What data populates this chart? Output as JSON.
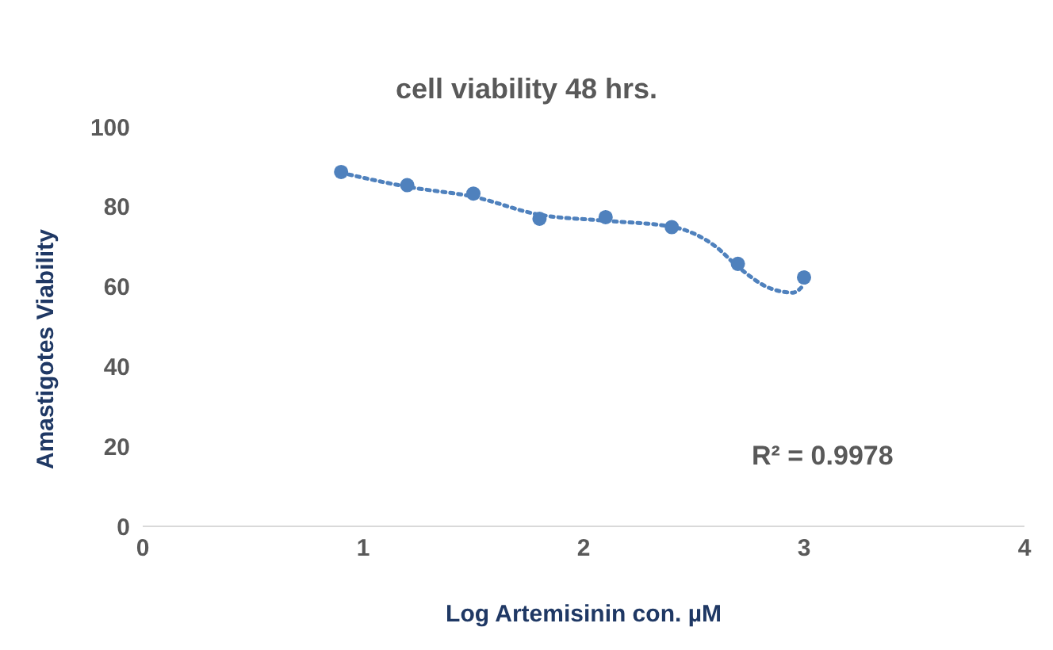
{
  "chart_data": {
    "type": "scatter",
    "title": "cell viability 48 hrs.",
    "xlabel": "Log Artemisinin con. µM",
    "ylabel": "Amastigotes Viability",
    "xlim": [
      0,
      4
    ],
    "xticks": [
      0,
      1,
      2,
      3,
      4
    ],
    "ylim": [
      0,
      100
    ],
    "yticks": [
      0,
      20,
      40,
      60,
      80,
      100
    ],
    "grid": false,
    "legend": false,
    "marker": "circle",
    "annotations": [
      "R² = 0.9978"
    ],
    "series": [
      {
        "color": "#4f81bd",
        "x": [
          0.9,
          1.2,
          1.5,
          1.8,
          2.1,
          2.4,
          2.7,
          3.0
        ],
        "values": [
          88.7,
          85.4,
          83.3,
          77,
          77.4,
          74.9,
          65.7,
          62.3
        ]
      },
      {
        "type": "line",
        "color": "#4f81bd",
        "marker": "none",
        "line_style": "dotted",
        "x": [
          0.9,
          1.2,
          1.5,
          1.8,
          2.1,
          2.4,
          2.6,
          2.7,
          2.85,
          2.95,
          3.0
        ],
        "values": [
          88.5,
          85,
          82.5,
          78,
          76.5,
          75,
          70,
          65,
          59.5,
          58.5,
          60.5
        ]
      }
    ]
  }
}
